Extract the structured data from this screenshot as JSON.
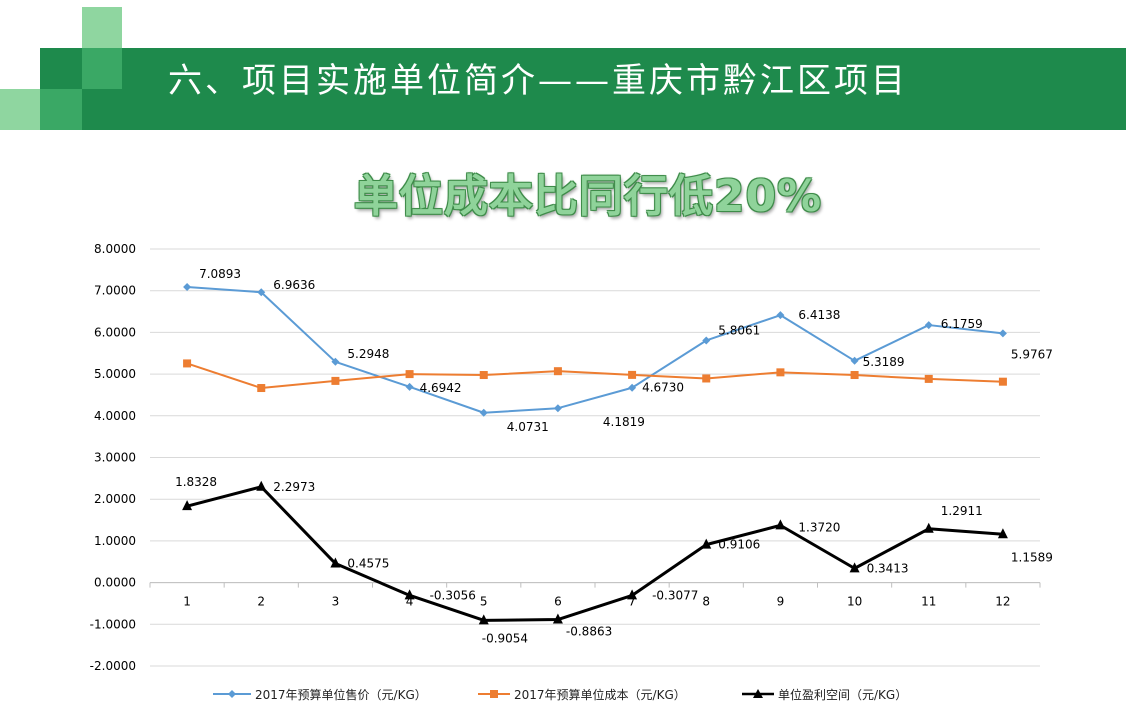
{
  "slide": {
    "title": "六、项目实施单位简介——重庆市黔江区项目",
    "headline": "单位成本比同行低20%"
  },
  "colors": {
    "header_green": "#1e8a4c",
    "series_price": "#5b9bd5",
    "series_cost": "#ed7d31",
    "series_profit": "#000000"
  },
  "chart_data": {
    "type": "line",
    "categories": [
      "1",
      "2",
      "3",
      "4",
      "5",
      "6",
      "7",
      "8",
      "9",
      "10",
      "11",
      "12"
    ],
    "ylim": [
      -2,
      8
    ],
    "yticks": [
      "8.0000",
      "7.0000",
      "6.0000",
      "5.0000",
      "4.0000",
      "3.0000",
      "2.0000",
      "1.0000",
      "0.0000",
      "-1.0000",
      "-2.0000"
    ],
    "grid": true,
    "legend_position": "bottom",
    "series": [
      {
        "name": "2017年预算单位售价（元/KG）",
        "marker": "diamond",
        "values": [
          7.0893,
          6.9636,
          5.2948,
          4.6942,
          4.0731,
          4.1819,
          4.673,
          5.8061,
          6.4138,
          5.3189,
          6.1759,
          5.9767
        ],
        "labels": [
          "7.0893",
          "6.9636",
          "5.2948",
          "4.6942",
          "4.0731",
          "4.1819",
          "4.6730",
          "5.8061",
          "6.4138",
          "5.3189",
          "6.1759",
          "5.9767"
        ]
      },
      {
        "name": "2017年预算单位成本（元/KG）",
        "marker": "square",
        "values": [
          5.256,
          4.666,
          4.837,
          5.0,
          4.978,
          5.07,
          4.981,
          4.895,
          5.042,
          4.978,
          4.885,
          4.818
        ],
        "labels": []
      },
      {
        "name": "单位盈利空间（元/KG）",
        "marker": "triangle",
        "values": [
          1.8328,
          2.2973,
          0.4575,
          -0.3056,
          -0.9054,
          -0.8863,
          -0.3077,
          0.9106,
          1.372,
          0.3413,
          1.2911,
          1.1589
        ],
        "labels": [
          "1.8328",
          "2.2973",
          "0.4575",
          "-0.3056",
          "-0.9054",
          "-0.8863",
          "-0.3077",
          "0.9106",
          "1.3720",
          "0.3413",
          "1.2911",
          "1.1589"
        ]
      }
    ]
  }
}
